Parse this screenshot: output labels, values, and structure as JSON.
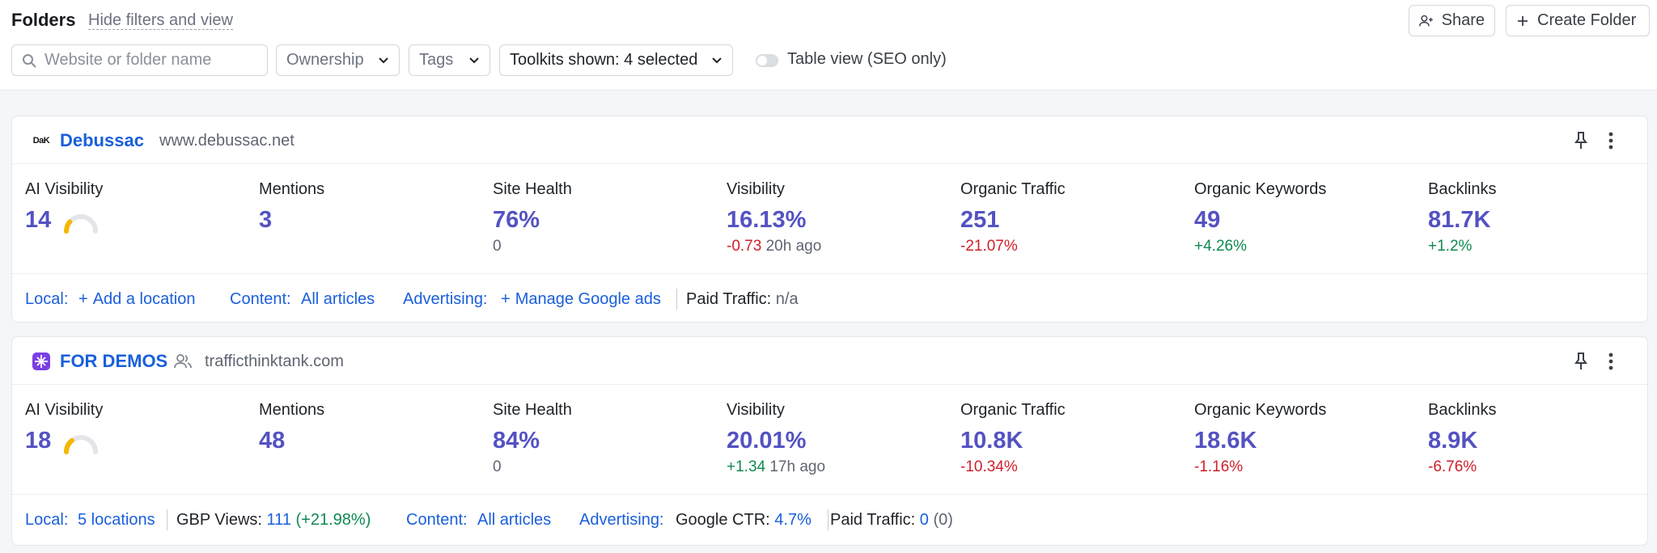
{
  "header": {
    "title": "Folders",
    "hide_link": "Hide filters and view",
    "share_label": "Share",
    "create_label": "Create Folder"
  },
  "filters": {
    "search_placeholder": "Website or folder name",
    "ownership": "Ownership",
    "tags": "Tags",
    "toolkits": "Toolkits shown: 4 selected",
    "table_view_label": "Table view (SEO only)",
    "table_view_on": false
  },
  "projects": [
    {
      "name": "Debussac",
      "domain": "www.debussac.net",
      "logo_text": "DaK",
      "metrics": {
        "ai_visibility": {
          "label": "AI Visibility",
          "value": "14",
          "gauge_fraction": 0.14
        },
        "mentions": {
          "label": "Mentions",
          "value": "3"
        },
        "site_health": {
          "label": "Site Health",
          "value": "76%",
          "sub": "0"
        },
        "visibility": {
          "label": "Visibility",
          "value": "16.13%",
          "delta": "-0.73",
          "time": "20h ago"
        },
        "organic_traffic": {
          "label": "Organic Traffic",
          "value": "251",
          "delta": "-21.07%"
        },
        "organic_keywords": {
          "label": "Organic Keywords",
          "value": "49",
          "delta": "+4.26%"
        },
        "backlinks": {
          "label": "Backlinks",
          "value": "81.7K",
          "delta": "+1.2%"
        }
      },
      "footer": {
        "local_label": "Local:",
        "local_action": "Add a location",
        "content_label": "Content:",
        "content_value": "All articles",
        "advertising_label": "Advertising:",
        "advertising_action": "Manage Google ads",
        "paid_label": "Paid Traffic:",
        "paid_value": "n/a"
      }
    },
    {
      "name": "FOR DEMOS",
      "domain": "trafficthinktank.com",
      "metrics": {
        "ai_visibility": {
          "label": "AI Visibility",
          "value": "18",
          "gauge_fraction": 0.18
        },
        "mentions": {
          "label": "Mentions",
          "value": "48"
        },
        "site_health": {
          "label": "Site Health",
          "value": "84%",
          "sub": "0"
        },
        "visibility": {
          "label": "Visibility",
          "value": "20.01%",
          "delta": "+1.34",
          "time": "17h ago"
        },
        "organic_traffic": {
          "label": "Organic Traffic",
          "value": "10.8K",
          "delta": "-10.34%"
        },
        "organic_keywords": {
          "label": "Organic Keywords",
          "value": "18.6K",
          "delta": "-1.16%"
        },
        "backlinks": {
          "label": "Backlinks",
          "value": "8.9K",
          "delta": "-6.76%"
        }
      },
      "footer": {
        "local_label": "Local:",
        "local_value": "5 locations",
        "gbp_label": "GBP Views:",
        "gbp_value": "111",
        "gbp_delta": "(+21.98%)",
        "content_label": "Content:",
        "content_value": "All articles",
        "advertising_label": "Advertising:",
        "ctr_label": "Google CTR:",
        "ctr_value": "4.7%",
        "paid_label": "Paid Traffic:",
        "paid_value": "0",
        "paid_extra": "(0)"
      }
    }
  ],
  "colors": {
    "accent": "#5452c2",
    "link": "#1a5fdb",
    "negative": "#d0202c",
    "positive": "#0d8a4f",
    "gauge": "#f5b800"
  }
}
